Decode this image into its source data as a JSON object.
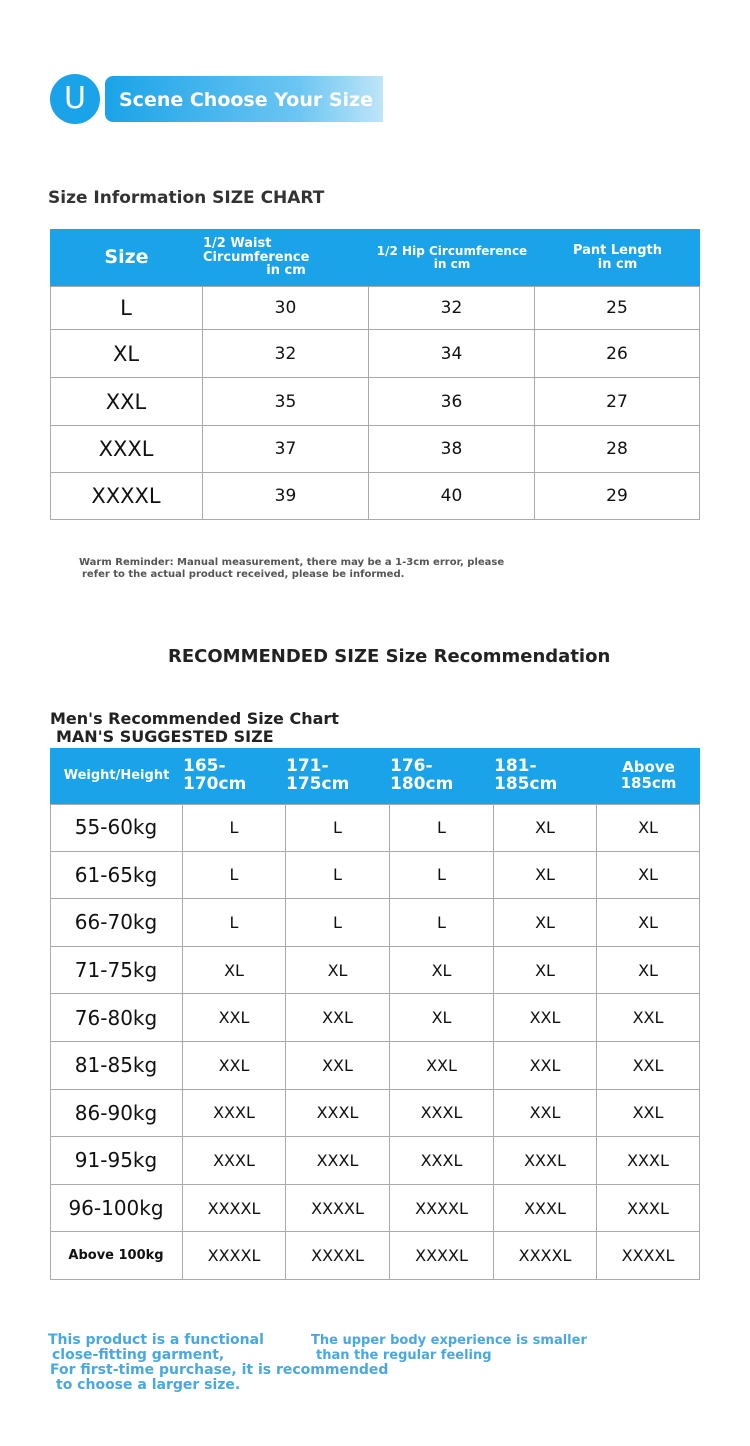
{
  "banner": {
    "icon": "U",
    "title": "Scene Choose Your Size"
  },
  "size_chart": {
    "title": "Size Information SIZE CHART",
    "header": [
      [
        "Size"
      ],
      [
        "1/2 Waist Circumference",
        "in cm"
      ],
      [
        "1/2 Hip Circumference",
        "in cm"
      ],
      [
        "Pant Length",
        "in cm"
      ]
    ],
    "rows": [
      [
        "L",
        30,
        32,
        25
      ],
      [
        "XL",
        32,
        34,
        26
      ],
      [
        "XXL",
        35,
        36,
        27
      ],
      [
        "XXXL",
        37,
        38,
        28
      ],
      [
        "XXXXL",
        39,
        40,
        29
      ]
    ]
  },
  "reminder": [
    "Warm Reminder: Manual measurement, there may be a 1-3cm error, please",
    "refer to the actual product received, please be informed."
  ],
  "recommendation_title": "RECOMMENDED SIZE Size Recommendation",
  "recommend_chart": {
    "title": [
      "Men's Recommended Size Chart",
      "MAN'S SUGGESTED SIZE"
    ],
    "header": [
      [
        "Weight/Height"
      ],
      [
        "165-170cm"
      ],
      [
        "171-175cm"
      ],
      [
        "176-180cm"
      ],
      [
        "181-185cm"
      ],
      [
        "Above",
        "185cm"
      ]
    ],
    "rows": [
      [
        "55-60kg",
        "L",
        "L",
        "L",
        "XL",
        "XL"
      ],
      [
        "61-65kg",
        "L",
        "L",
        "L",
        "XL",
        "XL"
      ],
      [
        "66-70kg",
        "L",
        "L",
        "L",
        "XL",
        "XL"
      ],
      [
        "71-75kg",
        "XL",
        "XL",
        "XL",
        "XL",
        "XL"
      ],
      [
        "76-80kg",
        "XXL",
        "XXL",
        "XL",
        "XXL",
        "XXL"
      ],
      [
        "81-85kg",
        "XXL",
        "XXL",
        "XXL",
        "XXL",
        "XXL"
      ],
      [
        "86-90kg",
        "XXXL",
        "XXXL",
        "XXXL",
        "XXL",
        "XXL"
      ],
      [
        "91-95kg",
        "XXXL",
        "XXXL",
        "XXXL",
        "XXXL",
        "XXXL"
      ],
      [
        "96-100kg",
        "XXXXL",
        "XXXXL",
        "XXXXL",
        "XXXL",
        "XXXL"
      ],
      [
        "Above 100kg",
        "XXXXL",
        "XXXXL",
        "XXXXL",
        "XXXXL",
        "XXXXL"
      ]
    ]
  },
  "notes": {
    "left": [
      "This product is a functional",
      "close-fitting garment,",
      "For first-time purchase, it is recommended",
      "to choose a larger size."
    ],
    "right": [
      "The upper body experience is smaller",
      "than the regular feeling"
    ]
  }
}
